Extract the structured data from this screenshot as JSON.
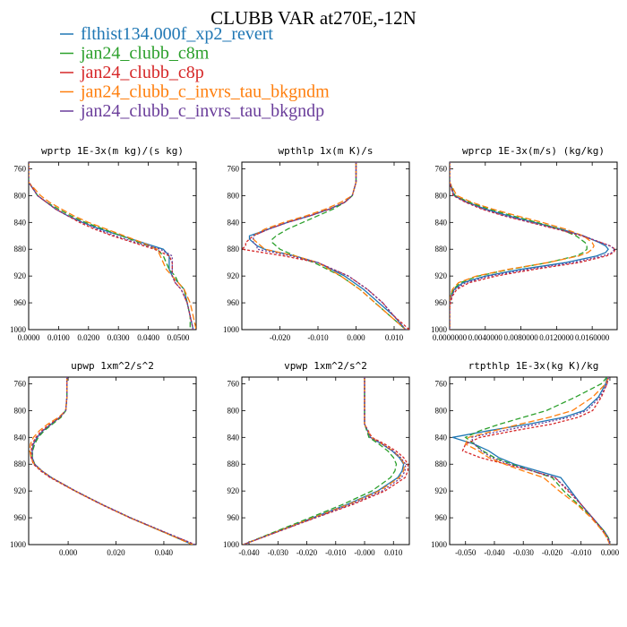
{
  "figure_title": "CLUBB VAR at270E,-12N",
  "legend": [
    {
      "label": "flthist134.000f_xp2_revert",
      "color": "#1f77b4"
    },
    {
      "label": "jan24_clubb_c8m",
      "color": "#2ca02c"
    },
    {
      "label": "jan24_clubb_c8p",
      "color": "#d62728"
    },
    {
      "label": "jan24_clubb_c_invrs_tau_bkgndm",
      "color": "#ff7f0e"
    },
    {
      "label": "jan24_clubb_c_invrs_tau_bkgndp",
      "color": "#6a3d9a"
    }
  ],
  "chart_data": [
    {
      "type": "line",
      "title": "wprtp  1E-3x(m kg)/(s kg)",
      "xlim": [
        0.0,
        0.056
      ],
      "ylim": [
        1000,
        750
      ],
      "xticks": [
        0,
        0.01,
        0.02,
        0.03,
        0.04,
        0.05
      ],
      "xtick_labels": [
        "0.0000",
        "0.0100",
        "0.0200",
        "0.0300",
        "0.0400",
        "0.0500"
      ],
      "yticks": [
        760,
        800,
        840,
        880,
        920,
        960,
        1000
      ],
      "ytick_labels": [
        "760",
        "800",
        "840",
        "880",
        "920",
        "960",
        "1000"
      ],
      "y": [
        750,
        780,
        800,
        810,
        820,
        830,
        840,
        850,
        860,
        870,
        880,
        890,
        900,
        910,
        920,
        930,
        940,
        960,
        980,
        1000
      ],
      "series": [
        {
          "values": [
            0.0,
            0.0,
            0.003,
            0.006,
            0.009,
            0.013,
            0.018,
            0.024,
            0.031,
            0.038,
            0.045,
            0.047,
            0.047,
            0.047,
            0.048,
            0.05,
            0.052,
            0.053,
            0.054,
            0.055
          ]
        },
        {
          "values": [
            0.0,
            0.0,
            0.003,
            0.006,
            0.01,
            0.014,
            0.019,
            0.025,
            0.031,
            0.037,
            0.043,
            0.045,
            0.046,
            0.047,
            0.049,
            0.05,
            0.052,
            0.053,
            0.054,
            0.054
          ]
        },
        {
          "values": [
            0.0,
            0.0,
            0.003,
            0.006,
            0.009,
            0.013,
            0.017,
            0.022,
            0.028,
            0.035,
            0.042,
            0.047,
            0.048,
            0.048,
            0.048,
            0.049,
            0.051,
            0.053,
            0.054,
            0.055
          ]
        },
        {
          "values": [
            0.0,
            0.0,
            0.004,
            0.007,
            0.011,
            0.015,
            0.02,
            0.026,
            0.032,
            0.038,
            0.043,
            0.044,
            0.045,
            0.046,
            0.048,
            0.05,
            0.052,
            0.054,
            0.055,
            0.056
          ]
        },
        {
          "values": [
            0.0,
            0.0,
            0.003,
            0.006,
            0.009,
            0.013,
            0.018,
            0.023,
            0.029,
            0.036,
            0.044,
            0.048,
            0.048,
            0.048,
            0.048,
            0.049,
            0.051,
            0.053,
            0.054,
            0.055
          ]
        }
      ]
    },
    {
      "type": "line",
      "title": "wpthlp  1x(m K)/s",
      "xlim": [
        -0.03,
        0.014
      ],
      "ylim": [
        1000,
        750
      ],
      "xticks": [
        -0.02,
        -0.01,
        0.0,
        0.01
      ],
      "xtick_labels": [
        "-0.020",
        "-0.010",
        "0.000",
        "0.010"
      ],
      "yticks": [
        760,
        800,
        840,
        880,
        920,
        960,
        1000
      ],
      "ytick_labels": [
        "760",
        "800",
        "840",
        "880",
        "920",
        "960",
        "1000"
      ],
      "y": [
        750,
        780,
        800,
        810,
        820,
        830,
        840,
        850,
        860,
        865,
        870,
        875,
        880,
        890,
        900,
        920,
        940,
        960,
        980,
        1000
      ],
      "series": [
        {
          "values": [
            0.0,
            0.0,
            -0.001,
            -0.003,
            -0.007,
            -0.012,
            -0.018,
            -0.023,
            -0.028,
            -0.028,
            -0.027,
            -0.026,
            -0.024,
            -0.016,
            -0.01,
            -0.003,
            0.002,
            0.006,
            0.01,
            0.013
          ]
        },
        {
          "values": [
            0.0,
            0.0,
            -0.001,
            -0.003,
            -0.006,
            -0.01,
            -0.014,
            -0.018,
            -0.021,
            -0.022,
            -0.022,
            -0.021,
            -0.02,
            -0.016,
            -0.011,
            -0.004,
            0.001,
            0.005,
            0.009,
            0.013
          ]
        },
        {
          "values": [
            0.0,
            0.0,
            -0.001,
            -0.003,
            -0.007,
            -0.012,
            -0.018,
            -0.023,
            -0.027,
            -0.028,
            -0.029,
            -0.029,
            -0.03,
            -0.019,
            -0.01,
            -0.002,
            0.003,
            0.007,
            0.01,
            0.014
          ]
        },
        {
          "values": [
            0.0,
            0.0,
            -0.001,
            -0.004,
            -0.008,
            -0.013,
            -0.019,
            -0.024,
            -0.027,
            -0.027,
            -0.026,
            -0.025,
            -0.024,
            -0.016,
            -0.01,
            -0.004,
            0.001,
            0.005,
            0.009,
            0.013
          ]
        },
        {
          "values": [
            0.0,
            0.0,
            -0.001,
            -0.003,
            -0.007,
            -0.012,
            -0.018,
            -0.023,
            -0.027,
            -0.027,
            -0.027,
            -0.026,
            -0.026,
            -0.017,
            -0.01,
            -0.002,
            0.003,
            0.007,
            0.01,
            0.013
          ]
        }
      ]
    },
    {
      "type": "line",
      "title": "wprcp  1E-3x(m/s) (kg/kg)",
      "xlim": [
        0.0,
        0.0188
      ],
      "ylim": [
        1000,
        750
      ],
      "xticks": [
        0,
        0.004,
        0.008,
        0.012,
        0.016
      ],
      "xtick_labels": [
        "0.0000000",
        "0.0040000",
        "0.0080000",
        "0.0120000",
        "0.0160000"
      ],
      "yticks": [
        760,
        800,
        840,
        880,
        920,
        960,
        1000
      ],
      "ytick_labels": [
        "760",
        "800",
        "840",
        "880",
        "920",
        "960",
        "1000"
      ],
      "y": [
        750,
        780,
        800,
        810,
        820,
        830,
        840,
        850,
        860,
        870,
        875,
        880,
        885,
        890,
        900,
        910,
        920,
        930,
        940,
        950,
        960,
        970,
        1000
      ],
      "series": [
        {
          "values": [
            0.0,
            0.0,
            0.0005,
            0.002,
            0.004,
            0.0065,
            0.0095,
            0.0125,
            0.015,
            0.0168,
            0.0175,
            0.0178,
            0.0175,
            0.0165,
            0.013,
            0.008,
            0.004,
            0.0015,
            0.0005,
            0.0002,
            0.0,
            0.0,
            0.0
          ]
        },
        {
          "values": [
            0.0,
            0.0,
            0.0006,
            0.0022,
            0.0044,
            0.007,
            0.0098,
            0.0124,
            0.0142,
            0.0152,
            0.0154,
            0.0154,
            0.015,
            0.0142,
            0.011,
            0.0068,
            0.0032,
            0.0012,
            0.0004,
            0.0001,
            0.0,
            0.0,
            0.0
          ]
        },
        {
          "values": [
            0.0,
            0.0,
            0.0004,
            0.0018,
            0.0036,
            0.006,
            0.009,
            0.012,
            0.0148,
            0.017,
            0.018,
            0.0186,
            0.0184,
            0.0176,
            0.0145,
            0.0095,
            0.0052,
            0.0022,
            0.0008,
            0.0003,
            0.0001,
            0.0,
            0.0
          ]
        },
        {
          "values": [
            0.0,
            0.0,
            0.0008,
            0.0025,
            0.0048,
            0.0075,
            0.0104,
            0.013,
            0.015,
            0.016,
            0.0162,
            0.016,
            0.0155,
            0.0145,
            0.011,
            0.0066,
            0.003,
            0.001,
            0.0003,
            0.0001,
            0.0,
            0.0,
            0.0
          ]
        },
        {
          "values": [
            0.0,
            0.0,
            0.0005,
            0.0019,
            0.0038,
            0.0062,
            0.0092,
            0.0122,
            0.015,
            0.017,
            0.018,
            0.0185,
            0.0182,
            0.0172,
            0.0138,
            0.0088,
            0.0045,
            0.0018,
            0.0006,
            0.0002,
            0.0,
            0.0,
            0.0
          ]
        }
      ]
    },
    {
      "type": "line",
      "title": "upwp  1xm^2/s^2",
      "xlim": [
        -0.0165,
        0.0535
      ],
      "ylim": [
        1000,
        750
      ],
      "xticks": [
        0.0,
        0.02,
        0.04
      ],
      "xtick_labels": [
        "0.000",
        "0.020",
        "0.040"
      ],
      "yticks": [
        760,
        800,
        840,
        880,
        920,
        960,
        1000
      ],
      "ytick_labels": [
        "760",
        "800",
        "840",
        "880",
        "920",
        "960",
        "1000"
      ],
      "y": [
        750,
        780,
        800,
        810,
        820,
        830,
        840,
        850,
        860,
        870,
        880,
        890,
        900,
        920,
        940,
        960,
        980,
        1000
      ],
      "series": [
        {
          "values": [
            -0.0005,
            -0.0005,
            -0.001,
            -0.0035,
            -0.007,
            -0.0105,
            -0.013,
            -0.0145,
            -0.015,
            -0.015,
            -0.014,
            -0.011,
            -0.007,
            0.003,
            0.014,
            0.026,
            0.039,
            0.052
          ]
        },
        {
          "values": [
            -0.0005,
            -0.0005,
            -0.001,
            -0.003,
            -0.0065,
            -0.01,
            -0.0125,
            -0.014,
            -0.0148,
            -0.015,
            -0.014,
            -0.011,
            -0.007,
            0.003,
            0.014,
            0.026,
            0.039,
            0.052
          ]
        },
        {
          "values": [
            -0.0005,
            -0.0005,
            -0.001,
            -0.0035,
            -0.0075,
            -0.011,
            -0.0135,
            -0.015,
            -0.0155,
            -0.0155,
            -0.0145,
            -0.0115,
            -0.0075,
            0.0028,
            0.0138,
            0.0258,
            0.0392,
            0.053
          ]
        },
        {
          "values": [
            -0.0005,
            -0.0005,
            -0.001,
            -0.004,
            -0.0085,
            -0.012,
            -0.0145,
            -0.0158,
            -0.016,
            -0.0155,
            -0.0142,
            -0.011,
            -0.007,
            0.003,
            0.014,
            0.026,
            0.039,
            0.052
          ]
        },
        {
          "values": [
            -0.0005,
            -0.0005,
            -0.001,
            -0.0035,
            -0.007,
            -0.0105,
            -0.013,
            -0.0145,
            -0.015,
            -0.015,
            -0.014,
            -0.011,
            -0.007,
            0.0032,
            0.0142,
            0.0262,
            0.0395,
            0.053
          ]
        }
      ]
    },
    {
      "type": "line",
      "title": "vpwp  1xm^2/s^2",
      "xlim": [
        -0.0425,
        0.0155
      ],
      "ylim": [
        1000,
        750
      ],
      "xticks": [
        -0.04,
        -0.03,
        -0.02,
        -0.01,
        0.0,
        0.01
      ],
      "xtick_labels": [
        "-0.040",
        "-0.030",
        "-0.020",
        "-0.010",
        "-0.000",
        "0.010"
      ],
      "yticks": [
        760,
        800,
        840,
        880,
        920,
        960,
        1000
      ],
      "ytick_labels": [
        "760",
        "800",
        "840",
        "880",
        "920",
        "960",
        "1000"
      ],
      "y": [
        750,
        780,
        800,
        820,
        840,
        850,
        860,
        870,
        880,
        890,
        900,
        920,
        940,
        960,
        980,
        1000
      ],
      "series": [
        {
          "values": [
            0.0,
            0.0,
            0.0,
            0.0,
            0.002,
            0.006,
            0.0095,
            0.012,
            0.0135,
            0.013,
            0.0115,
            0.0045,
            -0.006,
            -0.018,
            -0.03,
            -0.042
          ]
        },
        {
          "values": [
            0.0,
            0.0,
            0.0,
            0.0,
            0.0015,
            0.005,
            0.008,
            0.01,
            0.011,
            0.0105,
            0.009,
            0.0025,
            -0.0075,
            -0.019,
            -0.0305,
            -0.042
          ]
        },
        {
          "values": [
            0.0,
            0.0,
            0.0,
            0.0,
            0.0025,
            0.007,
            0.0108,
            0.0135,
            0.015,
            0.015,
            0.014,
            0.007,
            -0.004,
            -0.017,
            -0.0295,
            -0.042
          ]
        },
        {
          "values": [
            0.0,
            0.0,
            0.0,
            0.0,
            0.0022,
            0.0062,
            0.0098,
            0.0123,
            0.0138,
            0.0135,
            0.012,
            0.005,
            -0.0055,
            -0.0178,
            -0.0298,
            -0.042
          ]
        },
        {
          "values": [
            0.0,
            0.0,
            0.0,
            0.0,
            0.002,
            0.0062,
            0.0098,
            0.0125,
            0.0142,
            0.014,
            0.0128,
            0.006,
            -0.0048,
            -0.0172,
            -0.0296,
            -0.042
          ]
        }
      ]
    },
    {
      "type": "line",
      "title": "rtpthlp  1E-3x(kg K)/kg",
      "xlim": [
        -0.0555,
        0.0025
      ],
      "ylim": [
        1000,
        750
      ],
      "xticks": [
        -0.05,
        -0.04,
        -0.03,
        -0.02,
        -0.01,
        0.0
      ],
      "xtick_labels": [
        "-0.050",
        "-0.040",
        "-0.030",
        "-0.020",
        "-0.010",
        "0.000"
      ],
      "yticks": [
        760,
        800,
        840,
        880,
        920,
        960,
        1000
      ],
      "ytick_labels": [
        "760",
        "800",
        "840",
        "880",
        "920",
        "960",
        "1000"
      ],
      "y": [
        750,
        760,
        780,
        800,
        810,
        820,
        830,
        840,
        850,
        860,
        870,
        880,
        890,
        900,
        920,
        940,
        960,
        980,
        990,
        1000
      ],
      "series": [
        {
          "values": [
            -0.001,
            -0.0015,
            -0.004,
            -0.009,
            -0.016,
            -0.028,
            -0.042,
            -0.0545,
            -0.047,
            -0.042,
            -0.0385,
            -0.033,
            -0.025,
            -0.017,
            -0.0135,
            -0.01,
            -0.006,
            -0.002,
            -0.0005,
            0.0
          ]
        },
        {
          "values": [
            -0.001,
            -0.003,
            -0.012,
            -0.022,
            -0.03,
            -0.038,
            -0.045,
            -0.05,
            -0.047,
            -0.044,
            -0.04,
            -0.034,
            -0.027,
            -0.02,
            -0.016,
            -0.011,
            -0.006,
            -0.002,
            -0.0005,
            0.0
          ]
        },
        {
          "values": [
            -0.0005,
            -0.001,
            -0.003,
            -0.006,
            -0.011,
            -0.02,
            -0.033,
            -0.045,
            -0.05,
            -0.051,
            -0.045,
            -0.036,
            -0.027,
            -0.019,
            -0.0145,
            -0.01,
            -0.006,
            -0.0025,
            -0.001,
            0.0
          ]
        },
        {
          "values": [
            -0.0005,
            -0.0015,
            -0.006,
            -0.013,
            -0.021,
            -0.031,
            -0.04,
            -0.049,
            -0.05,
            -0.0455,
            -0.042,
            -0.0365,
            -0.03,
            -0.023,
            -0.0175,
            -0.0115,
            -0.0065,
            -0.0025,
            -0.001,
            0.0
          ]
        },
        {
          "values": [
            -0.0005,
            -0.001,
            -0.0035,
            -0.008,
            -0.014,
            -0.025,
            -0.037,
            -0.048,
            -0.047,
            -0.0445,
            -0.041,
            -0.035,
            -0.027,
            -0.019,
            -0.014,
            -0.01,
            -0.006,
            -0.002,
            -0.0005,
            0.0
          ]
        }
      ]
    }
  ]
}
